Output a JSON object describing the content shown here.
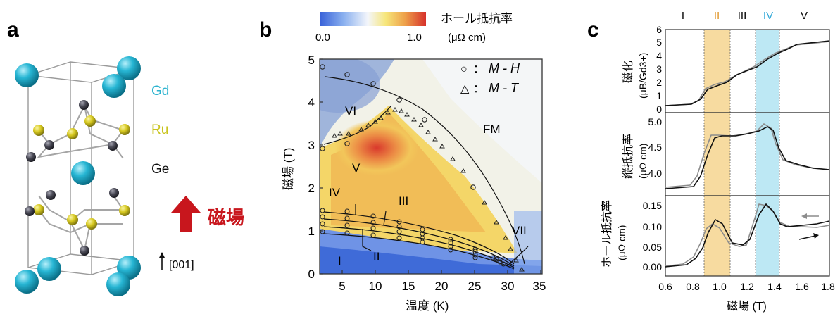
{
  "panel_a": {
    "label": "a",
    "legend": [
      {
        "name": "Gd",
        "color": "#2bb3cf"
      },
      {
        "name": "Ru",
        "color": "#c9c41f"
      },
      {
        "name": "Ge",
        "color": "#111111"
      }
    ],
    "field_label": "磁場",
    "field_color": "#c8161d",
    "axis_label": "[001]",
    "atom_colors": {
      "Gd": "#22b8d6",
      "Ru": "#d8cc20",
      "Ge": "#4a4a55"
    }
  },
  "panel_b": {
    "label": "b",
    "colorbar": {
      "title": "ホール抵抗率",
      "unit": "(μΩ cm)",
      "min": "0.0",
      "max": "1.0"
    },
    "xlabel": "温度 (K)",
    "ylabel": "磁場 (T)",
    "xticks": [
      "5",
      "10",
      "15",
      "20",
      "25",
      "30",
      "35"
    ],
    "yticks": [
      "0",
      "1",
      "2",
      "3",
      "4",
      "5"
    ],
    "xlim": [
      2,
      35.5
    ],
    "ylim": [
      0,
      5
    ],
    "legend": [
      {
        "symbol": "○",
        "text": "：",
        "italic": "M - H"
      },
      {
        "symbol": "△",
        "text": "：",
        "italic": "M - T"
      }
    ],
    "phases": [
      "I",
      "II",
      "III",
      "IV",
      "V",
      "VI",
      "VII",
      "FM"
    ]
  },
  "panel_c": {
    "label": "c",
    "regions": [
      "I",
      "II",
      "III",
      "IV",
      "V"
    ],
    "region_colors": {
      "II": "#e0962a",
      "IV": "#33a9d8"
    },
    "xlabel": "磁場 (T)",
    "xticks": [
      "0.6",
      "0.8",
      "1.0",
      "1.2",
      "1.4",
      "1.6",
      "1.8"
    ],
    "top": {
      "ylabel": "磁化",
      "unit": "(μB/Gd3+)",
      "yticks": [
        "0",
        "1",
        "2",
        "3",
        "4",
        "5",
        "6"
      ]
    },
    "mid": {
      "ylabel": "縦抵抗率",
      "unit": "(μΩ cm)",
      "yticks": [
        "4.0",
        "4.5",
        "5.0"
      ]
    },
    "bot": {
      "ylabel": "ホール抵抗率",
      "unit": "(μΩ cm)",
      "yticks": [
        "0.00",
        "0.05",
        "0.10",
        "0.15"
      ]
    }
  },
  "colors": {
    "black_curve": "#111111",
    "gray_curve": "#8c8c8c",
    "band_II": "#f7dba0",
    "band_IV": "#bde8f4"
  }
}
